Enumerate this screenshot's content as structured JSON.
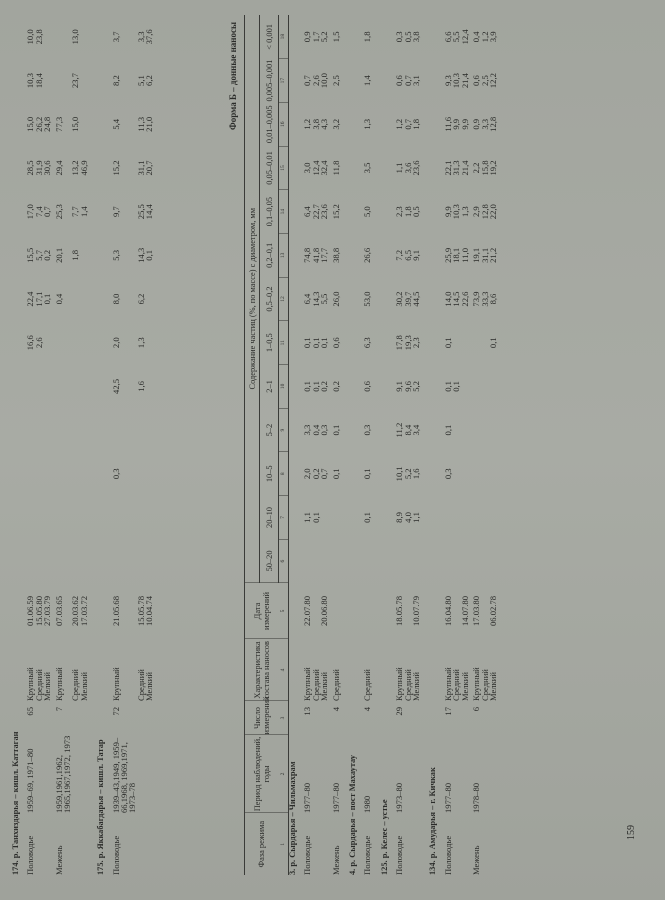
{
  "form_title": "Форма Б – донные наносы",
  "page_number": "159",
  "header": {
    "phase": "Фаза режима",
    "period": "Период наблюдений, годы",
    "count": "Число измерений",
    "characteristic": "Характеристика состава наносов",
    "date": "Дата измерений",
    "content": "Содержание частиц (%, по массе) с диаметром, мм",
    "ranges": [
      "50–20",
      "20–10",
      "10–5",
      "5–2",
      "2–1",
      "1–0,5",
      "0,5–0,2",
      "0,2–0,1",
      "0,1–0,05",
      "0,05–0,01",
      "0,01–0,005",
      "0,005–0,001",
      "< 0,001"
    ],
    "numbers": [
      "1",
      "2",
      "3",
      "4",
      "5",
      "6",
      "7",
      "8",
      "9",
      "10",
      "11",
      "12",
      "13",
      "14",
      "15",
      "16",
      "17",
      "18"
    ]
  },
  "continued_stations": [
    {
      "title": "174. р. Танхиздарья – кишл. Каттаган",
      "rows": [
        {
          "phase": "Половодье",
          "period": "1959–69, 1971–80",
          "count": "65",
          "char": "Крупный",
          "date": "01.06.59",
          "v": [
            "",
            "",
            "",
            "",
            "",
            "16,6",
            "22,4",
            "15,5",
            "17,0",
            "28,5",
            "15,0",
            "10,3",
            "10,0"
          ]
        },
        {
          "phase": "",
          "period": "",
          "count": "",
          "char": "Средний",
          "date": "15.05.80",
          "v": [
            "",
            "",
            "",
            "",
            "",
            "2,6",
            "17,1",
            "5,7",
            "7,4",
            "31,9",
            "26,2",
            "18,4",
            "23,8"
          ]
        },
        {
          "phase": "",
          "period": "",
          "count": "",
          "char": "Мелкий",
          "date": "27.03.79",
          "v": [
            "",
            "",
            "",
            "",
            "",
            "",
            "0,1",
            "0,2",
            "0,7",
            "30,6",
            "24,8",
            "",
            ""
          ]
        },
        {
          "phase": "Межень",
          "period": "1959,1961,1962, 1965,1967,1972, 1973",
          "count": "7",
          "char": "Крупный",
          "date": "07.03.65",
          "v": [
            "",
            "",
            "",
            "",
            "",
            "",
            "0,4",
            "20,1",
            "25,3",
            "29,4",
            "77,3",
            "",
            ""
          ]
        },
        {
          "phase": "",
          "period": "",
          "count": "",
          "char": "Средний",
          "date": "20.03.62",
          "v": [
            "",
            "",
            "",
            "",
            "",
            "",
            "",
            "1,8",
            "7,7",
            "13,2",
            "15,0",
            "23,7",
            "13,0"
          ]
        },
        {
          "phase": "",
          "period": "",
          "count": "",
          "char": "Мелкий",
          "date": "17.03.72",
          "v": [
            "",
            "",
            "",
            "",
            "",
            "",
            "",
            "",
            "1,4",
            "46,9",
            "",
            "",
            ""
          ]
        }
      ]
    },
    {
      "title": "175. р. Яккабагдарья – кишл. Татар",
      "rows": [
        {
          "phase": "Половодье",
          "period": "1939–43,1949, 1959–66,1968, 1969,1971, 1973–78",
          "count": "72",
          "char": "Крупный",
          "date": "21.05.68",
          "v": [
            "",
            "",
            "0,3",
            "",
            "42,5",
            "2,0",
            "8,0",
            "5,3",
            "9,7",
            "15,2",
            "5,4",
            "8,2",
            "3,7"
          ]
        },
        {
          "phase": "",
          "period": "",
          "count": "",
          "char": "Средний",
          "date": "15.05.78",
          "v": [
            "",
            "",
            "",
            "",
            "1,6",
            "1,3",
            "6,2",
            "14,3",
            "25,5",
            "31,1",
            "11,3",
            "5,1",
            "3,3"
          ]
        },
        {
          "phase": "",
          "period": "",
          "count": "",
          "char": "Мелкий",
          "date": "10.04.74",
          "v": [
            "",
            "",
            "",
            "",
            "",
            "",
            "",
            "0,1",
            "14,4",
            "20,7",
            "21,0",
            "6,2",
            "37,6"
          ]
        }
      ]
    }
  ],
  "stations": [
    {
      "title": "3. р. Сырдарья – Чильмахрам",
      "rows": [
        {
          "phase": "Половодье",
          "period": "1977–80",
          "count": "13",
          "char": "Крупный",
          "date": "22.07.80",
          "v": [
            "",
            "1,1",
            "2,0",
            "3,3",
            "0,1",
            "0,1",
            "6,4",
            "74,8",
            "6,4",
            "3,0",
            "1,2",
            "0,7",
            "0,9"
          ]
        },
        {
          "phase": "",
          "period": "",
          "count": "",
          "char": "Средний",
          "date": "",
          "v": [
            "",
            "0,1",
            "0,2",
            "0,4",
            "0,1",
            "0,1",
            "14,3",
            "41,8",
            "22,7",
            "12,4",
            "3,8",
            "2,6",
            "1,7"
          ]
        },
        {
          "phase": "",
          "period": "",
          "count": "",
          "char": "Мелкий",
          "date": "20.06.80",
          "v": [
            "",
            "",
            "0,7",
            "0,3",
            "0,2",
            "0,1",
            "5,5",
            "17,7",
            "23,6",
            "32,4",
            "4,3",
            "10,0",
            "5,2"
          ]
        },
        {
          "phase": "Межень",
          "period": "1977–80",
          "count": "4",
          "char": "Средний",
          "date": "",
          "v": [
            "",
            "",
            "0,1",
            "0,1",
            "0,2",
            "0,6",
            "26,0",
            "38,8",
            "15,2",
            "11,8",
            "3,2",
            "2,5",
            "1,5"
          ]
        }
      ]
    },
    {
      "title": "4. р. Сырдарья – пост Махаутау",
      "rows": [
        {
          "phase": "Половодье",
          "period": "1980",
          "count": "4",
          "char": "Средний",
          "date": "",
          "v": [
            "",
            "0,1",
            "0,1",
            "0,3",
            "0,6",
            "6,3",
            "53,0",
            "26,6",
            "5,0",
            "3,5",
            "1,3",
            "1,4",
            "1,8"
          ]
        }
      ]
    },
    {
      "title": "125. р. Келес – устье",
      "rows": [
        {
          "phase": "Половодье",
          "period": "1973–80",
          "count": "29",
          "char": "Крупный",
          "date": "18.05.78",
          "v": [
            "",
            "8,9",
            "10,1",
            "11,2",
            "9,1",
            "17,8",
            "30,2",
            "7,2",
            "2,3",
            "1,1",
            "1,2",
            "0,6",
            "0,3"
          ]
        },
        {
          "phase": "",
          "period": "",
          "count": "",
          "char": "Средний",
          "date": "",
          "v": [
            "",
            "4,0",
            "5,2",
            "8,4",
            "9,6",
            "19,3",
            "39,7",
            "6,5",
            "1,8",
            "3,6",
            "0,7",
            "0,7",
            "0,5"
          ]
        },
        {
          "phase": "",
          "period": "",
          "count": "",
          "char": "Мелкий",
          "date": "10.07.79",
          "v": [
            "",
            "1,1",
            "1,6",
            "3,4",
            "5,2",
            "2,3",
            "44,5",
            "9,1",
            "0,5",
            "23,6",
            "1,8",
            "3,1",
            "3,8"
          ]
        }
      ]
    },
    {
      "title": "134. р. Амударья – г. Кичкак",
      "rows": [
        {
          "phase": "Половодье",
          "period": "1977–80",
          "count": "17",
          "char": "Крупный",
          "date": "16.04.80",
          "v": [
            "",
            "",
            "0,3",
            "0,1",
            "0,1",
            "0,1",
            "14,0",
            "25,9",
            "9,9",
            "22,1",
            "11,6",
            "9,3",
            "6,6"
          ]
        },
        {
          "phase": "",
          "period": "",
          "count": "",
          "char": "Средний",
          "date": "",
          "v": [
            "",
            "",
            "",
            "",
            "0,1",
            "",
            "14,5",
            "18,1",
            "10,3",
            "31,3",
            "9,9",
            "10,3",
            "5,5"
          ]
        },
        {
          "phase": "",
          "period": "",
          "count": "",
          "char": "Мелкий",
          "date": "14.07.80",
          "v": [
            "",
            "",
            "",
            "",
            "",
            "",
            "22,6",
            "11,0",
            "1,3",
            "21,4",
            "9,9",
            "21,4",
            "12,4"
          ]
        },
        {
          "phase": "Межень",
          "period": "1978–80",
          "count": "6",
          "char": "Крупный",
          "date": "17.03.80",
          "v": [
            "",
            "",
            "",
            "",
            "",
            "",
            "73,9",
            "19,1",
            "2,9",
            "2,2",
            "0,9",
            "0,6",
            "0,4"
          ]
        },
        {
          "phase": "",
          "period": "",
          "count": "",
          "char": "Средний",
          "date": "",
          "v": [
            "",
            "",
            "",
            "",
            "",
            "",
            "33,3",
            "31,1",
            "12,8",
            "15,8",
            "3,3",
            "2,5",
            "1,2"
          ]
        },
        {
          "phase": "",
          "period": "",
          "count": "",
          "char": "Мелкий",
          "date": "06.02.78",
          "v": [
            "",
            "",
            "",
            "",
            "",
            "0,1",
            "8,6",
            "21,2",
            "22,0",
            "19,2",
            "12,8",
            "12,2",
            "3,9"
          ]
        }
      ]
    }
  ]
}
